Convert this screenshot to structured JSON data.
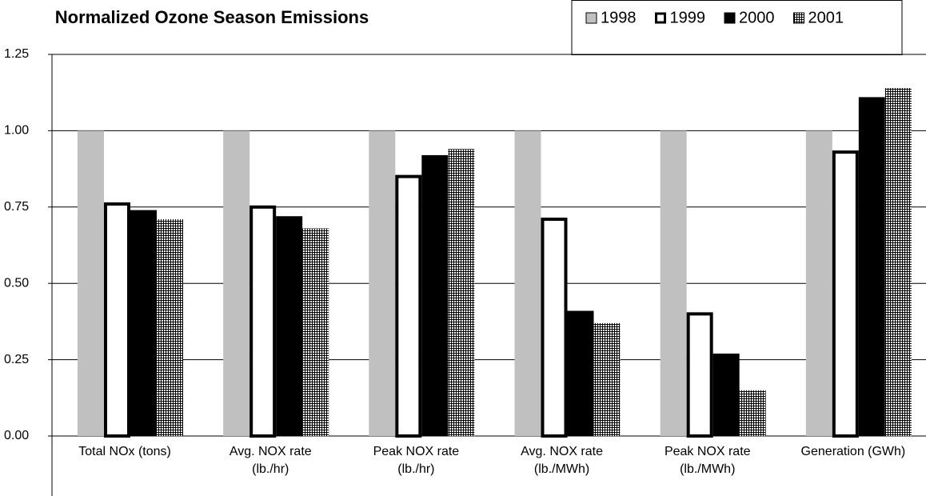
{
  "chart_data": {
    "type": "bar",
    "title": "Normalized Ozone Season Emissions",
    "categories": [
      "Total NOx (tons)",
      "Avg. NOX rate (lb./hr)",
      "Peak NOX rate (lb./hr)",
      "Avg. NOX rate (lb./MWh)",
      "Peak NOX rate (lb./MWh)",
      "Generation (GWh)"
    ],
    "series": [
      {
        "name": "1998",
        "color": "#c0c0c0",
        "values": [
          1,
          1,
          1,
          1,
          1,
          1
        ]
      },
      {
        "name": "1999",
        "color": "#ffffff",
        "values": [
          0.76,
          0.75,
          0.85,
          0.71,
          0.4,
          0.93
        ]
      },
      {
        "name": "2000",
        "color": "#000000",
        "values": [
          0.74,
          0.72,
          0.92,
          0.41,
          0.27,
          1.11
        ]
      },
      {
        "name": "2001",
        "color": "#000000",
        "hatch": true,
        "values": [
          0.71,
          0.68,
          0.94,
          0.37,
          0.15,
          1.14
        ]
      }
    ],
    "ylim": [
      0,
      1.25
    ],
    "yticks": [
      {
        "value": 0,
        "label": "0.00"
      },
      0.25,
      {
        "value": 0.5,
        "label": "0.50"
      },
      0.75,
      {
        "value": 1,
        "label": "1.00"
      },
      1.25
    ],
    "grid": true,
    "legend": "top-right"
  }
}
